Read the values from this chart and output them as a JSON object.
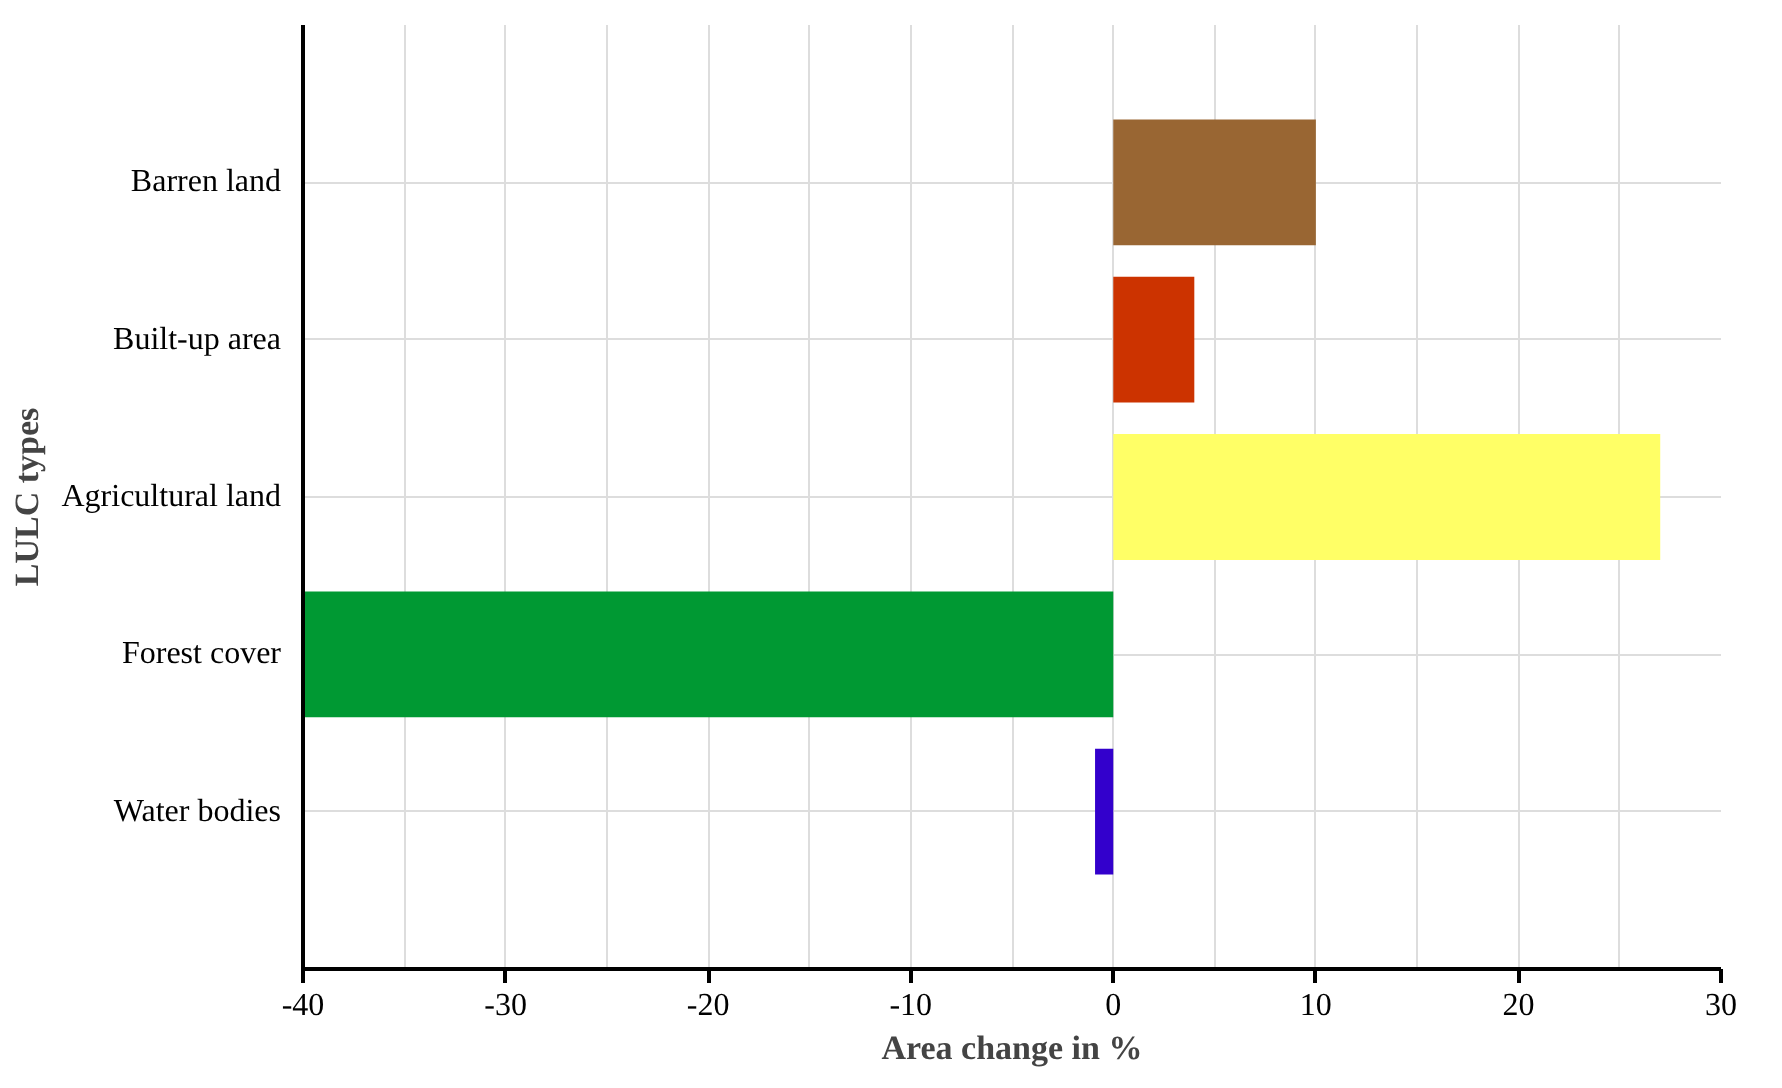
{
  "chart_data": {
    "type": "bar",
    "orientation": "horizontal",
    "xlabel": "Area change in %",
    "ylabel": "LULC types",
    "categories": [
      "Barren land",
      "Built-up area",
      "Agricultural land",
      "Forest cover",
      "Water bodies"
    ],
    "values": [
      10,
      4,
      27,
      -40,
      -0.9
    ],
    "colors": [
      "#996633",
      "#cc3300",
      "#ffff66",
      "#009933",
      "#3300cc"
    ],
    "xlim": [
      -40,
      30
    ],
    "xticks": [
      -40,
      -30,
      -20,
      -10,
      0,
      10,
      20,
      30
    ],
    "grid": true
  }
}
